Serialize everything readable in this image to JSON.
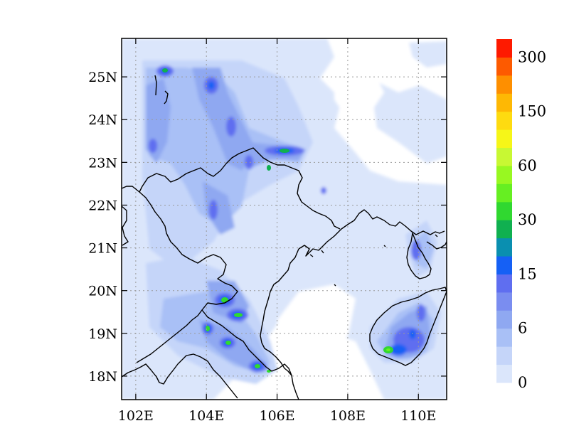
{
  "map": {
    "lat_labels": [
      "25N",
      "24N",
      "23N",
      "22N",
      "21N",
      "20N",
      "19N",
      "18N"
    ],
    "lon_labels": [
      "102E",
      "104E",
      "106E",
      "108E",
      "110E"
    ],
    "lat_values": [
      25,
      24,
      23,
      22,
      21,
      20,
      19,
      18
    ],
    "lon_values": [
      102,
      104,
      106,
      108,
      110
    ],
    "lon_range": [
      101.6,
      110.8
    ],
    "lat_range": [
      17.45,
      25.9
    ],
    "grid": true
  },
  "colorbar": {
    "colors": [
      "#dbe6fb",
      "#c5d5f9",
      "#a9c0f6",
      "#8fa8f1",
      "#7a8df0",
      "#5f6ef0",
      "#1560f5",
      "#0a8fb0",
      "#10b050",
      "#30d830",
      "#66ef22",
      "#98f821",
      "#c8f833",
      "#f6f618",
      "#fedb10",
      "#feb804",
      "#fe8f00",
      "#fd5a00",
      "#fe1a00"
    ],
    "labels": [
      "0",
      "6",
      "15",
      "30",
      "60",
      "150",
      "300"
    ]
  },
  "colors": {
    "coast": "#000000",
    "grid": "#9a9a9a"
  }
}
